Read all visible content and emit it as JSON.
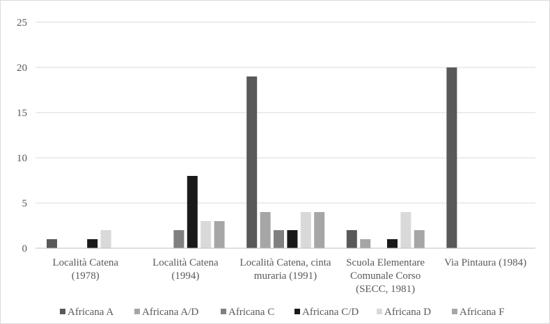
{
  "chart_data": {
    "type": "bar",
    "categories": [
      [
        "Località Catena",
        "(1978)"
      ],
      [
        "Località Catena",
        "(1994)"
      ],
      [
        "Località Catena, cinta",
        "muraria (1991)"
      ],
      [
        "Scuola Elementare",
        "Comunale Corso",
        "(SECC, 1981)"
      ],
      [
        "Via Pintaura (1984)"
      ]
    ],
    "series": [
      {
        "name": "Africana A",
        "color": "#595959",
        "values": [
          1,
          0,
          19,
          2,
          20
        ]
      },
      {
        "name": "Africana A/D",
        "color": "#a6a6a6",
        "values": [
          0,
          0,
          4,
          1,
          0
        ]
      },
      {
        "name": "Africana C",
        "color": "#808080",
        "values": [
          0,
          2,
          2,
          0,
          0
        ]
      },
      {
        "name": "Africana C/D",
        "color": "#1a1a1a",
        "values": [
          1,
          8,
          2,
          1,
          0
        ]
      },
      {
        "name": "Africana D",
        "color": "#d9d9d9",
        "values": [
          2,
          3,
          4,
          4,
          0
        ]
      },
      {
        "name": "Africana F",
        "color": "#a6a6a6",
        "values": [
          0,
          3,
          4,
          2,
          0
        ]
      }
    ],
    "ylim": [
      0,
      25
    ],
    "yticks": [
      0,
      5,
      10,
      15,
      20,
      25
    ],
    "grid": true,
    "legend_position": "bottom"
  }
}
